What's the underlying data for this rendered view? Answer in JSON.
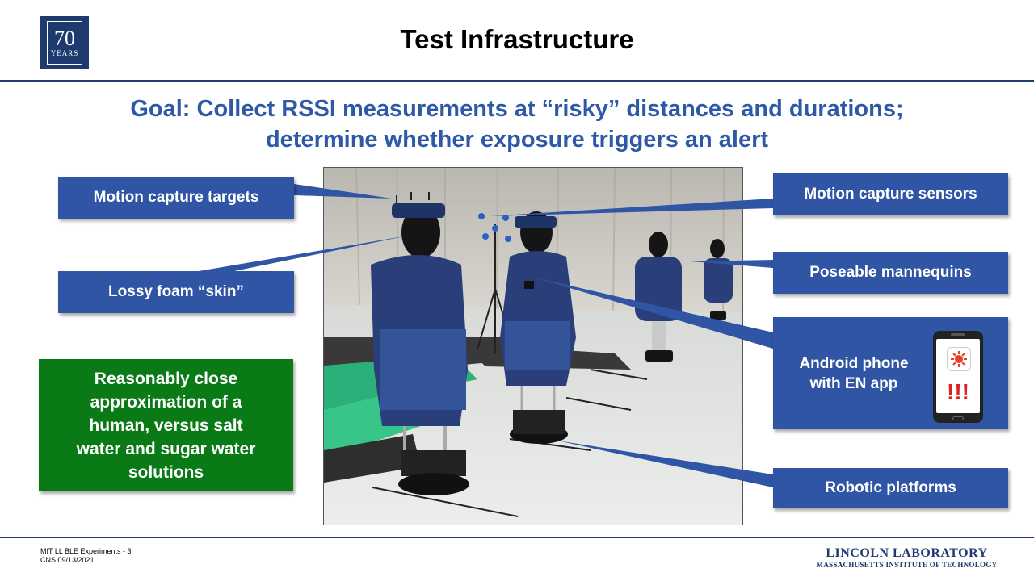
{
  "logo": {
    "number": "70",
    "years": "YEARS"
  },
  "title": "Test Infrastructure",
  "goal": {
    "line1": "Goal: Collect RSSI measurements at “risky” distances and durations;",
    "line2": "determine whether exposure triggers an alert"
  },
  "callouts": {
    "motion_targets": "Motion capture targets",
    "foam_skin": "Lossy foam “skin”",
    "motion_sensors": "Motion capture sensors",
    "mannequins": "Poseable mannequins",
    "android_line1": "Android phone",
    "android_line2": "with EN app",
    "robotic": "Robotic platforms"
  },
  "approximation": {
    "line1": "Reasonably close",
    "line2": "approximation of a",
    "line3": "human, versus salt",
    "line4": "water and sugar water",
    "line5": "solutions"
  },
  "phone_alert": "!!!",
  "footer": {
    "line1": "MIT LL BLE Experiments - 3",
    "line2": "CNS 09/13/2021"
  },
  "brand": {
    "line1": "LINCOLN LABORATORY",
    "line2": "MASSACHUSETTS INSTITUTE OF TECHNOLOGY"
  },
  "colors": {
    "callout_blue": "#2f55a4",
    "goal_blue": "#2e59a7",
    "note_green": "#0a7a16",
    "navy": "#1f3a6e",
    "alert_red": "#e02020"
  }
}
